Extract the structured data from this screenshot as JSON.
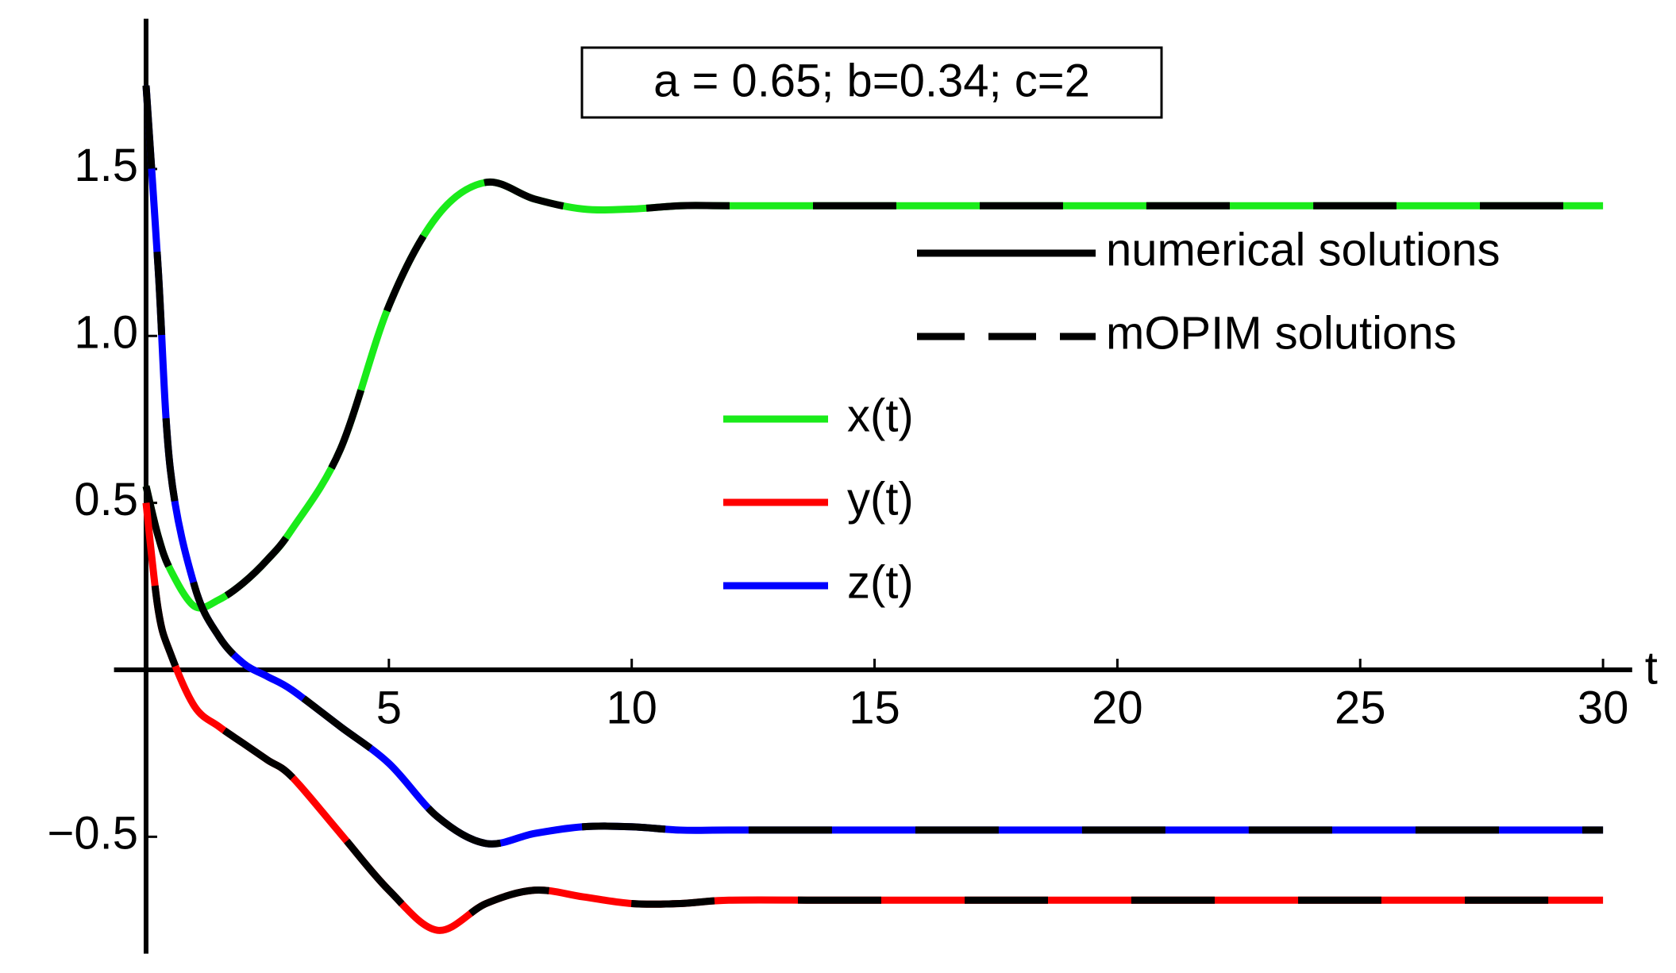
{
  "chart_data": {
    "type": "line",
    "annotation": "a = 0.65; b=0.34; c=2",
    "x_label": "t",
    "x": [
      0,
      0.25,
      0.5,
      1,
      1.5,
      2,
      2.5,
      3,
      4,
      5,
      6,
      7,
      8,
      9,
      10,
      11,
      12,
      14,
      16,
      18,
      20,
      25,
      30
    ],
    "series": [
      {
        "name": "x(t)",
        "color": "#1aeb1a",
        "values": [
          0.55,
          0.4,
          0.3,
          0.19,
          0.21,
          0.26,
          0.33,
          0.42,
          0.66,
          1.09,
          1.36,
          1.46,
          1.41,
          1.38,
          1.38,
          1.39,
          1.39,
          1.39,
          1.39,
          1.39,
          1.39,
          1.39,
          1.39
        ]
      },
      {
        "name": "y(t)",
        "color": "#ff0000",
        "values": [
          0.5,
          0.18,
          0.05,
          -0.11,
          -0.17,
          -0.22,
          -0.27,
          -0.32,
          -0.49,
          -0.66,
          -0.78,
          -0.7,
          -0.66,
          -0.68,
          -0.7,
          -0.7,
          -0.69,
          -0.69,
          -0.69,
          -0.69,
          -0.69,
          -0.69,
          -0.69
        ]
      },
      {
        "name": "z(t)",
        "color": "#0000ff",
        "values": [
          1.75,
          1.2,
          0.6,
          0.25,
          0.1,
          0.02,
          -0.02,
          -0.06,
          -0.17,
          -0.28,
          -0.44,
          -0.52,
          -0.49,
          -0.47,
          -0.47,
          -0.48,
          -0.48,
          -0.48,
          -0.48,
          -0.48,
          -0.48,
          -0.48,
          -0.48
        ]
      }
    ],
    "line_styles": [
      {
        "name": "numerical solutions",
        "dash": "solid"
      },
      {
        "name": "mOPIM solutions",
        "dash": "dashed"
      }
    ],
    "xlim": [
      -0.66,
      30.6
    ],
    "ylim": [
      -0.85,
      1.95
    ],
    "xticks": [
      5,
      10,
      15,
      20,
      25,
      30
    ],
    "yticks": [
      {
        "value": -0.5,
        "label": "−0.5"
      },
      0.5,
      {
        "value": 1,
        "label": "1.0"
      },
      1.5
    ],
    "grid": false
  }
}
